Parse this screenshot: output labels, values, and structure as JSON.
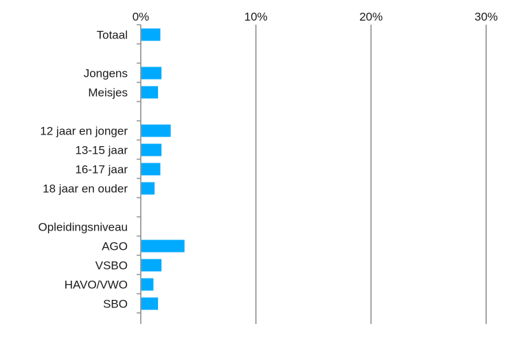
{
  "chart_data": {
    "type": "bar",
    "orientation": "horizontal",
    "categories": [
      "Totaal",
      "",
      "Jongens",
      "Meisjes",
      "",
      "12 jaar en jonger",
      "13-15 jaar",
      "16-17 jaar",
      "18 jaar en ouder",
      "",
      "Opleidingsniveau",
      "AGO",
      "VSBO",
      "HAVO/VWO",
      "SBO"
    ],
    "values": [
      1.7,
      null,
      1.8,
      1.5,
      null,
      2.6,
      1.8,
      1.7,
      1.2,
      null,
      null,
      3.8,
      1.8,
      1.1,
      1.5
    ],
    "x_ticks": [
      "0%",
      "10%",
      "20%",
      "30%"
    ],
    "xlim": [
      0,
      30
    ],
    "x_axis_position": "top",
    "grid": "vertical",
    "bar_color": "#00AAFF",
    "title": "",
    "xlabel": "",
    "ylabel": ""
  }
}
